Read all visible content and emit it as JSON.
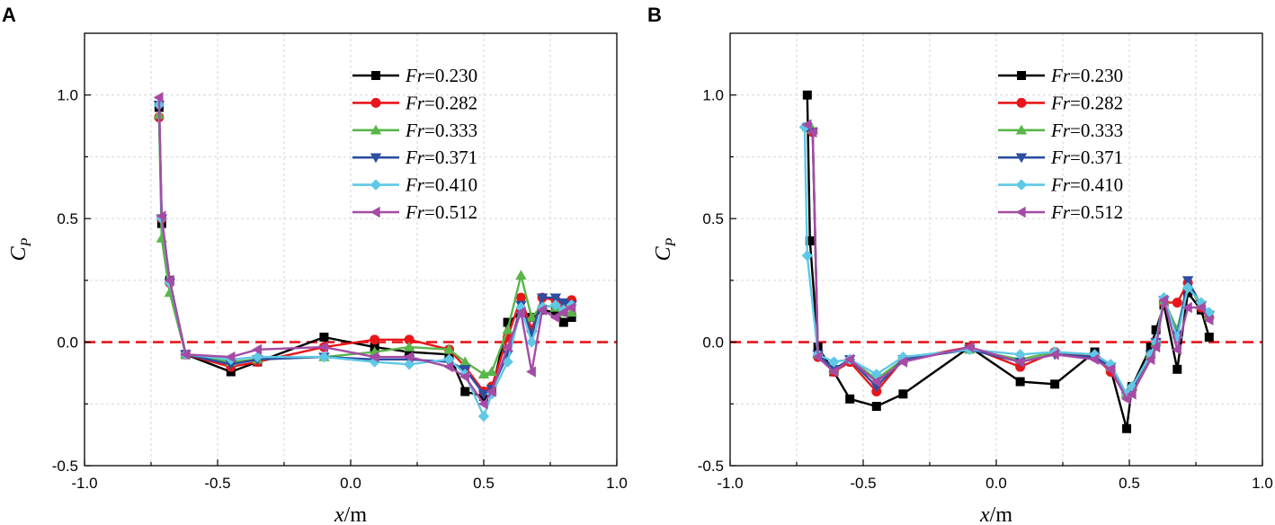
{
  "chart_data": [
    {
      "panel": "A",
      "type": "line",
      "xlabel": "x",
      "xunit": "/m",
      "ylabel": "C",
      "ylabel_sub": "P",
      "xlim": [
        -1.0,
        1.0
      ],
      "ylim": [
        -0.5,
        1.25
      ],
      "xticks": [
        "-1.0",
        "-0.5",
        "0.0",
        "0.5",
        "1.0"
      ],
      "yticks": [
        "-0.5",
        "0.0",
        "0.5",
        "1.0"
      ],
      "grid": true,
      "reference_line": 0.0,
      "legend_position": "top-right",
      "series": [
        {
          "name": "Fr",
          "value": "=0.230",
          "color": "#000000",
          "marker": "square",
          "x": [
            -0.72,
            -0.71,
            -0.68,
            -0.62,
            -0.45,
            -0.35,
            -0.1,
            0.09,
            0.22,
            0.37,
            0.43,
            0.5,
            0.53,
            0.59,
            0.64,
            0.68,
            0.72,
            0.77,
            0.8,
            0.83
          ],
          "y": [
            0.95,
            0.48,
            0.25,
            -0.05,
            -0.12,
            -0.08,
            0.02,
            -0.02,
            -0.04,
            -0.05,
            -0.2,
            -0.22,
            -0.2,
            0.08,
            0.12,
            0.1,
            0.13,
            0.12,
            0.08,
            0.1
          ]
        },
        {
          "name": "Fr",
          "value": "=0.282",
          "color": "#e8161b",
          "marker": "circle",
          "x": [
            -0.72,
            -0.71,
            -0.68,
            -0.62,
            -0.45,
            -0.35,
            -0.1,
            0.09,
            0.22,
            0.37,
            0.43,
            0.5,
            0.53,
            0.59,
            0.64,
            0.68,
            0.72,
            0.77,
            0.8,
            0.83
          ],
          "y": [
            0.91,
            0.5,
            0.24,
            -0.05,
            -0.1,
            -0.08,
            -0.02,
            0.01,
            0.01,
            -0.03,
            -0.1,
            -0.2,
            -0.18,
            0.02,
            0.18,
            0.05,
            0.18,
            0.17,
            0.15,
            0.17
          ]
        },
        {
          "name": "Fr",
          "value": "=0.333",
          "color": "#5ab64a",
          "marker": "triangle-up",
          "x": [
            -0.72,
            -0.71,
            -0.68,
            -0.62,
            -0.45,
            -0.35,
            -0.1,
            0.09,
            0.22,
            0.37,
            0.43,
            0.5,
            0.53,
            0.59,
            0.64,
            0.68,
            0.72,
            0.77,
            0.8,
            0.83
          ],
          "y": [
            0.92,
            0.42,
            0.2,
            -0.05,
            -0.08,
            -0.07,
            -0.06,
            -0.04,
            -0.02,
            -0.03,
            -0.08,
            -0.13,
            -0.12,
            0.05,
            0.27,
            0.1,
            0.15,
            0.14,
            0.12,
            0.12
          ]
        },
        {
          "name": "Fr",
          "value": "=0.371",
          "color": "#2b4ea1",
          "marker": "triangle-down",
          "x": [
            -0.72,
            -0.71,
            -0.68,
            -0.62,
            -0.45,
            -0.35,
            -0.1,
            0.09,
            0.22,
            0.37,
            0.43,
            0.5,
            0.53,
            0.59,
            0.64,
            0.68,
            0.72,
            0.77,
            0.8,
            0.83
          ],
          "y": [
            0.96,
            0.5,
            0.24,
            -0.05,
            -0.09,
            -0.07,
            -0.06,
            -0.07,
            -0.07,
            -0.08,
            -0.11,
            -0.21,
            -0.19,
            -0.05,
            0.15,
            0.03,
            0.18,
            0.18,
            0.16,
            0.15
          ]
        },
        {
          "name": "Fr",
          "value": "=0.410",
          "color": "#5fc8e6",
          "marker": "diamond",
          "x": [
            -0.72,
            -0.71,
            -0.68,
            -0.62,
            -0.45,
            -0.35,
            -0.1,
            0.09,
            0.22,
            0.37,
            0.43,
            0.5,
            0.53,
            0.59,
            0.64,
            0.68,
            0.72,
            0.77,
            0.8,
            0.83
          ],
          "y": [
            0.96,
            0.5,
            0.24,
            -0.05,
            -0.07,
            -0.06,
            -0.06,
            -0.08,
            -0.09,
            -0.07,
            -0.13,
            -0.3,
            -0.21,
            -0.08,
            0.14,
            0.0,
            0.14,
            0.15,
            0.13,
            0.15
          ]
        },
        {
          "name": "Fr",
          "value": "=0.512",
          "color": "#a54ba5",
          "marker": "triangle-left",
          "x": [
            -0.72,
            -0.71,
            -0.68,
            -0.62,
            -0.45,
            -0.35,
            -0.1,
            0.09,
            0.22,
            0.37,
            0.43,
            0.5,
            0.53,
            0.59,
            0.64,
            0.68,
            0.72,
            0.77,
            0.8,
            0.83
          ],
          "y": [
            0.99,
            0.51,
            0.25,
            -0.05,
            -0.06,
            -0.03,
            -0.02,
            -0.06,
            -0.06,
            -0.1,
            -0.14,
            -0.25,
            -0.2,
            -0.02,
            0.12,
            -0.12,
            0.13,
            0.1,
            0.12,
            0.14
          ]
        }
      ]
    },
    {
      "panel": "B",
      "type": "line",
      "xlabel": "x",
      "xunit": "/m",
      "ylabel": "C",
      "ylabel_sub": "P",
      "xlim": [
        -1.0,
        1.0
      ],
      "ylim": [
        -0.5,
        1.25
      ],
      "xticks": [
        "-1.0",
        "-0.5",
        "0.0",
        "0.5",
        "1.0"
      ],
      "yticks": [
        "-0.5",
        "0.0",
        "0.5",
        "1.0"
      ],
      "grid": true,
      "reference_line": 0.0,
      "legend_position": "top-right",
      "series": [
        {
          "name": "Fr",
          "value": "=0.230",
          "color": "#000000",
          "marker": "square",
          "x": [
            -0.71,
            -0.7,
            -0.67,
            -0.61,
            -0.55,
            -0.45,
            -0.35,
            -0.1,
            0.09,
            0.22,
            0.37,
            0.43,
            0.49,
            0.51,
            0.58,
            0.6,
            0.63,
            0.68,
            0.72,
            0.77,
            0.8
          ],
          "y": [
            1.0,
            0.41,
            -0.02,
            -0.12,
            -0.23,
            -0.26,
            -0.21,
            -0.02,
            -0.16,
            -0.17,
            -0.04,
            -0.11,
            -0.35,
            -0.18,
            -0.02,
            0.05,
            0.15,
            -0.11,
            0.2,
            0.13,
            0.02
          ]
        },
        {
          "name": "Fr",
          "value": "=0.282",
          "color": "#e8161b",
          "marker": "circle",
          "x": [
            -0.71,
            -0.69,
            -0.67,
            -0.61,
            -0.55,
            -0.45,
            -0.35,
            -0.1,
            0.09,
            0.22,
            0.37,
            0.43,
            0.49,
            0.51,
            0.58,
            0.6,
            0.63,
            0.68,
            0.72,
            0.77,
            0.8
          ],
          "y": [
            0.87,
            0.85,
            -0.06,
            -0.12,
            -0.08,
            -0.2,
            -0.07,
            -0.02,
            -0.1,
            -0.04,
            -0.06,
            -0.12,
            -0.22,
            -0.19,
            -0.05,
            0.0,
            0.16,
            0.16,
            0.24,
            0.14,
            0.1
          ]
        },
        {
          "name": "Fr",
          "value": "=0.333",
          "color": "#5ab64a",
          "marker": "triangle-up",
          "x": [
            -0.71,
            -0.69,
            -0.67,
            -0.61,
            -0.55,
            -0.45,
            -0.35,
            -0.1,
            0.09,
            0.22,
            0.37,
            0.43,
            0.49,
            0.51,
            0.58,
            0.6,
            0.63,
            0.68,
            0.72,
            0.77,
            0.8
          ],
          "y": [
            0.87,
            0.86,
            -0.05,
            -0.11,
            -0.07,
            -0.15,
            -0.07,
            -0.03,
            -0.07,
            -0.04,
            -0.05,
            -0.1,
            -0.21,
            -0.18,
            -0.05,
            0.0,
            0.17,
            0.05,
            0.23,
            0.15,
            0.11
          ]
        },
        {
          "name": "Fr",
          "value": "=0.371",
          "color": "#2b4ea1",
          "marker": "triangle-down",
          "x": [
            -0.71,
            -0.69,
            -0.67,
            -0.61,
            -0.55,
            -0.45,
            -0.35,
            -0.1,
            0.09,
            0.22,
            0.37,
            0.43,
            0.49,
            0.51,
            0.58,
            0.6,
            0.63,
            0.68,
            0.72,
            0.77,
            0.8
          ],
          "y": [
            0.87,
            0.85,
            -0.05,
            -0.11,
            -0.07,
            -0.18,
            -0.07,
            -0.03,
            -0.08,
            -0.05,
            -0.06,
            -0.1,
            -0.22,
            -0.19,
            -0.05,
            0.0,
            0.17,
            0.03,
            0.25,
            0.15,
            0.11
          ]
        },
        {
          "name": "Fr",
          "value": "=0.410",
          "color": "#5fc8e6",
          "marker": "diamond",
          "x": [
            -0.72,
            -0.71,
            -0.67,
            -0.61,
            -0.55,
            -0.45,
            -0.35,
            -0.1,
            0.09,
            0.22,
            0.37,
            0.43,
            0.49,
            0.51,
            0.58,
            0.6,
            0.63,
            0.68,
            0.72,
            0.77,
            0.8
          ],
          "y": [
            0.87,
            0.35,
            -0.05,
            -0.08,
            -0.07,
            -0.13,
            -0.06,
            -0.03,
            -0.05,
            -0.04,
            -0.05,
            -0.09,
            -0.21,
            -0.18,
            -0.05,
            0.0,
            0.18,
            0.02,
            0.22,
            0.16,
            0.12
          ]
        },
        {
          "name": "Fr",
          "value": "=0.512",
          "color": "#a54ba5",
          "marker": "triangle-left",
          "x": [
            -0.71,
            -0.69,
            -0.67,
            -0.61,
            -0.55,
            -0.45,
            -0.35,
            -0.1,
            0.09,
            0.22,
            0.37,
            0.43,
            0.49,
            0.51,
            0.58,
            0.6,
            0.63,
            0.68,
            0.72,
            0.77,
            0.8
          ],
          "y": [
            0.88,
            0.85,
            -0.06,
            -0.12,
            -0.07,
            -0.16,
            -0.08,
            -0.02,
            -0.08,
            -0.05,
            -0.07,
            -0.11,
            -0.23,
            -0.21,
            -0.07,
            -0.02,
            0.17,
            -0.03,
            0.14,
            0.14,
            0.09
          ]
        }
      ]
    }
  ]
}
